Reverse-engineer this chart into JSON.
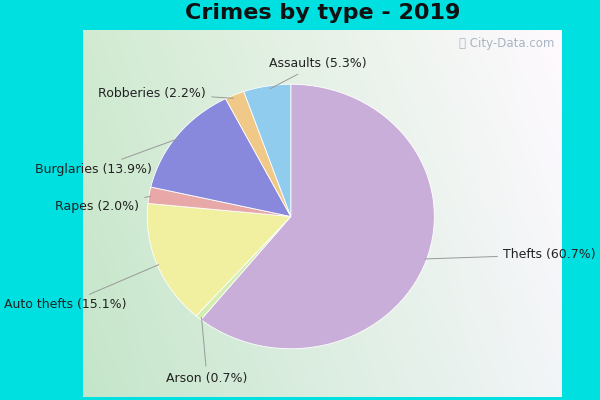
{
  "title": "Crimes by type - 2019",
  "slices": [
    {
      "label": "Thefts",
      "pct": 60.7,
      "color": "#c8aed8"
    },
    {
      "label": "Arson",
      "pct": 0.7,
      "color": "#d4edb0"
    },
    {
      "label": "Auto thefts",
      "pct": 15.1,
      "color": "#f0f0a0"
    },
    {
      "label": "Rapes",
      "pct": 2.0,
      "color": "#e8a8a8"
    },
    {
      "label": "Burglaries",
      "pct": 13.9,
      "color": "#8888dd"
    },
    {
      "label": "Robberies",
      "pct": 2.2,
      "color": "#f0c888"
    },
    {
      "label": "Assaults",
      "pct": 5.3,
      "color": "#90ccee"
    }
  ],
  "background_outer": "#00e0e0",
  "title_fontsize": 16,
  "label_fontsize": 9,
  "startangle": 90
}
